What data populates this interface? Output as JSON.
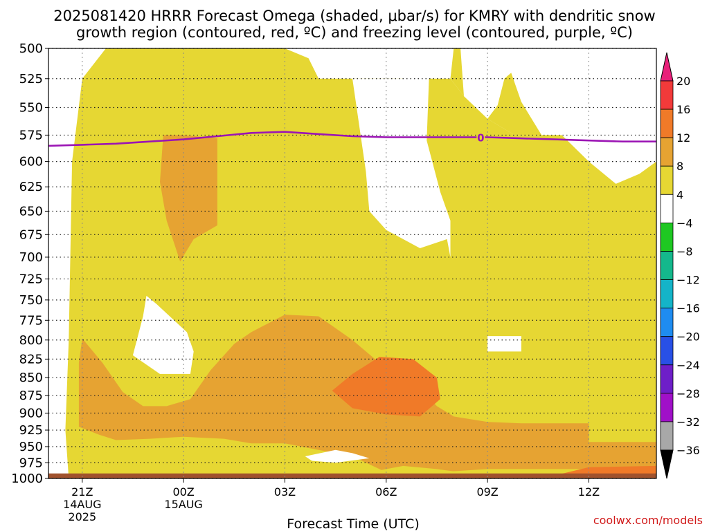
{
  "title_line1": "2025081420 HRRR Forecast Omega (shaded, μbar/s) for KMRY with dendritic snow",
  "title_line2": "growth region (contoured, red, ºC) and freezing level (contoured, purple, ºC)",
  "credit": "coolwx.com/models",
  "chart_data": {
    "type": "heatmap",
    "xlabel": "Forecast Time (UTC)",
    "ylabel": "",
    "x_hours_range": [
      -1,
      17
    ],
    "x_ticks": [
      {
        "hour": 0,
        "lines": [
          "21Z",
          "14AUG",
          "2025"
        ]
      },
      {
        "hour": 3,
        "lines": [
          "00Z",
          "15AUG"
        ]
      },
      {
        "hour": 6,
        "lines": [
          "03Z"
        ]
      },
      {
        "hour": 9,
        "lines": [
          "06Z"
        ]
      },
      {
        "hour": 12,
        "lines": [
          "09Z"
        ]
      },
      {
        "hour": 15,
        "lines": [
          "12Z"
        ]
      }
    ],
    "y_ticks": [
      500,
      525,
      550,
      575,
      600,
      625,
      650,
      675,
      700,
      725,
      750,
      775,
      800,
      825,
      850,
      875,
      900,
      925,
      950,
      975,
      1000
    ],
    "ylim": [
      500,
      1000
    ],
    "y_scale": "log-pressure",
    "grid": true,
    "colorbar": {
      "labels": [
        "20",
        "16",
        "12",
        "8",
        "4",
        "−4",
        "−8",
        "−12",
        "−16",
        "−20",
        "−24",
        "−28",
        "−32",
        "−36"
      ],
      "colors": [
        "#e8207a",
        "#f23a3a",
        "#f07a28",
        "#e6a332",
        "#e6d733",
        "#ffffff",
        "#1ec822",
        "#14b88c",
        "#14b4c8",
        "#1e8cf0",
        "#2850e6",
        "#6e1ec8",
        "#a010c8",
        "#a8a8a8",
        "#000000"
      ]
    },
    "freezing_level": {
      "label": "0",
      "label_hour": 11.8,
      "points": [
        [
          -1,
          585
        ],
        [
          0,
          584
        ],
        [
          1,
          583
        ],
        [
          2,
          581
        ],
        [
          3,
          579
        ],
        [
          4,
          576
        ],
        [
          5,
          573
        ],
        [
          6,
          572
        ],
        [
          7,
          574
        ],
        [
          8,
          576
        ],
        [
          9,
          577
        ],
        [
          10,
          577
        ],
        [
          11,
          577
        ],
        [
          12,
          577
        ],
        [
          13,
          578
        ],
        [
          14,
          579
        ],
        [
          15,
          580
        ],
        [
          16,
          581
        ],
        [
          17,
          581
        ]
      ]
    },
    "regions": [
      {
        "fill": "#e6d733",
        "points": [
          [
            -1,
            500
          ],
          [
            17,
            500
          ],
          [
            17,
            1000
          ],
          [
            -1,
            1000
          ]
        ]
      },
      {
        "fill": "#ffffff",
        "points": [
          [
            -1,
            500
          ],
          [
            0.7,
            500
          ],
          [
            0.0,
            525
          ],
          [
            -0.3,
            600
          ],
          [
            -0.4,
            800
          ],
          [
            -0.5,
            925
          ],
          [
            -0.4,
            1000
          ],
          [
            -1,
            1000
          ]
        ]
      },
      {
        "fill": "#ffffff",
        "points": [
          [
            4.1,
            500
          ],
          [
            6.0,
            500
          ],
          [
            6.7,
            508
          ],
          [
            7.0,
            525
          ],
          [
            9.1,
            525
          ],
          [
            9.5,
            525
          ],
          [
            10.5,
            525
          ],
          [
            10.9,
            525
          ],
          [
            11.3,
            540
          ],
          [
            12.0,
            560
          ],
          [
            12.8,
            575
          ],
          [
            14.2,
            575
          ],
          [
            15.0,
            600
          ],
          [
            15.8,
            622
          ],
          [
            16.5,
            612
          ],
          [
            17,
            600
          ],
          [
            17,
            500
          ]
        ]
      },
      {
        "fill": "#e6d733",
        "points": [
          [
            11.0,
            500
          ],
          [
            10.9,
            525
          ],
          [
            11.3,
            540
          ],
          [
            12.0,
            560
          ],
          [
            12.3,
            548
          ],
          [
            12.5,
            525
          ],
          [
            12.7,
            520
          ],
          [
            13.0,
            545
          ],
          [
            13.6,
            575
          ],
          [
            12.8,
            575
          ],
          [
            12.0,
            560
          ],
          [
            11.3,
            540
          ],
          [
            11.2,
            500
          ]
        ]
      },
      {
        "fill": "#ffffff",
        "points": [
          [
            7.0,
            525
          ],
          [
            8.0,
            525
          ],
          [
            8.4,
            610
          ],
          [
            8.5,
            650
          ],
          [
            9.0,
            670
          ],
          [
            10.0,
            690
          ],
          [
            10.8,
            680
          ],
          [
            10.9,
            700
          ],
          [
            10.9,
            660
          ],
          [
            10.6,
            630
          ],
          [
            10.2,
            580
          ],
          [
            10.3,
            500
          ],
          [
            9.6,
            500
          ],
          [
            9.5,
            525
          ],
          [
            9.1,
            525
          ]
        ]
      },
      {
        "fill": "#e6a332",
        "points": [
          [
            2.4,
            575
          ],
          [
            3.0,
            575
          ],
          [
            4.0,
            578
          ],
          [
            4.0,
            665
          ],
          [
            3.3,
            680
          ],
          [
            2.9,
            705
          ],
          [
            2.5,
            660
          ],
          [
            2.3,
            620
          ]
        ]
      },
      {
        "fill": "#ffffff",
        "points": [
          [
            1.9,
            745
          ],
          [
            2.2,
            755
          ],
          [
            3.1,
            790
          ],
          [
            3.3,
            815
          ],
          [
            3.2,
            845
          ],
          [
            2.3,
            845
          ],
          [
            1.5,
            820
          ],
          [
            1.8,
            770
          ]
        ]
      },
      {
        "fill": "#ffffff",
        "points": [
          [
            12.0,
            795
          ],
          [
            13.0,
            795
          ],
          [
            13.0,
            815
          ],
          [
            12.0,
            815
          ]
        ]
      },
      {
        "fill": "#e6a332",
        "points": [
          [
            -1,
            1000
          ],
          [
            17,
            1000
          ],
          [
            17,
            943
          ],
          [
            15.0,
            943
          ],
          [
            15.0,
            915
          ],
          [
            13.0,
            915
          ],
          [
            12.0,
            913
          ],
          [
            11.0,
            905
          ],
          [
            10.5,
            890
          ],
          [
            9.8,
            855
          ],
          [
            8.8,
            830
          ],
          [
            8.0,
            800
          ],
          [
            7.0,
            770
          ],
          [
            6.0,
            768
          ],
          [
            5.0,
            790
          ],
          [
            4.5,
            805
          ],
          [
            3.8,
            840
          ],
          [
            3.2,
            880
          ],
          [
            2.5,
            890
          ],
          [
            1.8,
            890
          ],
          [
            1.2,
            870
          ],
          [
            0.6,
            830
          ],
          [
            0.0,
            798
          ],
          [
            -0.1,
            830
          ],
          [
            -0.1,
            920
          ],
          [
            0.5,
            932
          ],
          [
            1.0,
            940
          ],
          [
            2.0,
            938
          ],
          [
            3.0,
            935
          ],
          [
            4.2,
            938
          ],
          [
            5.0,
            945
          ],
          [
            6.0,
            945
          ],
          [
            7.0,
            955
          ],
          [
            8.0,
            965
          ],
          [
            9.0,
            990
          ],
          [
            10.0,
            992
          ],
          [
            12.0,
            985
          ],
          [
            15.0,
            985
          ],
          [
            17,
            985
          ],
          [
            17,
            1000
          ]
        ]
      },
      {
        "fill": "#e6d733",
        "points": [
          [
            0.3,
            1000
          ],
          [
            1.0,
            982
          ],
          [
            2.0,
            978
          ],
          [
            3.0,
            980
          ],
          [
            3.2,
            995
          ],
          [
            3.2,
            1000
          ]
        ]
      },
      {
        "fill": "#ffffff",
        "points": [
          [
            6.6,
            965
          ],
          [
            7.5,
            955
          ],
          [
            8.0,
            960
          ],
          [
            8.5,
            968
          ],
          [
            7.5,
            975
          ],
          [
            6.8,
            972
          ]
        ]
      },
      {
        "fill": "#e6d733",
        "points": [
          [
            7.8,
            1000
          ],
          [
            8.5,
            990
          ],
          [
            9.5,
            980
          ],
          [
            10.5,
            985
          ],
          [
            11.2,
            990
          ],
          [
            11.2,
            1000
          ]
        ]
      },
      {
        "fill": "#f07a28",
        "points": [
          [
            7.4,
            868
          ],
          [
            8.0,
            845
          ],
          [
            8.8,
            822
          ],
          [
            9.8,
            825
          ],
          [
            10.5,
            850
          ],
          [
            10.6,
            880
          ],
          [
            10.0,
            905
          ],
          [
            9.0,
            902
          ],
          [
            8.0,
            893
          ]
        ]
      },
      {
        "fill": "#f07a28",
        "points": [
          [
            14.0,
            995
          ],
          [
            15.0,
            982
          ],
          [
            17,
            980
          ],
          [
            17,
            995
          ]
        ]
      },
      {
        "fill": "#a0522d",
        "points": [
          [
            -1,
            992
          ],
          [
            17,
            992
          ],
          [
            17,
            1000
          ],
          [
            -1,
            1000
          ]
        ]
      }
    ]
  }
}
